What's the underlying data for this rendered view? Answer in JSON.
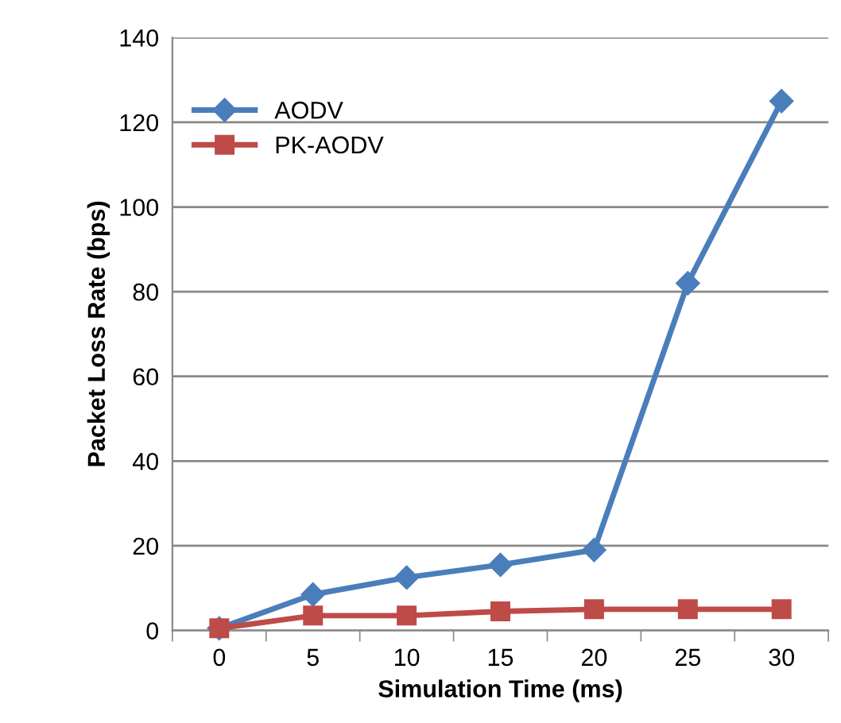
{
  "chart_data": {
    "type": "line",
    "xlabel": "Simulation Time (ms)",
    "ylabel": "Packet Loss Rate (bps)",
    "categories": [
      "0",
      "5",
      "10",
      "15",
      "20",
      "25",
      "30"
    ],
    "series": [
      {
        "name": "AODV",
        "color": "#4a7ebb",
        "marker": "diamond",
        "values": [
          0.5,
          8.5,
          12.5,
          15.5,
          19,
          82,
          125
        ]
      },
      {
        "name": "PK-AODV",
        "color": "#be4b48",
        "marker": "square",
        "values": [
          0.5,
          3.5,
          3.5,
          4.5,
          5,
          5,
          5
        ]
      }
    ],
    "ylim": [
      0,
      140
    ],
    "yticks": [
      0,
      20,
      40,
      60,
      80,
      100,
      120,
      140
    ],
    "grid": "y",
    "legend": "top left"
  }
}
